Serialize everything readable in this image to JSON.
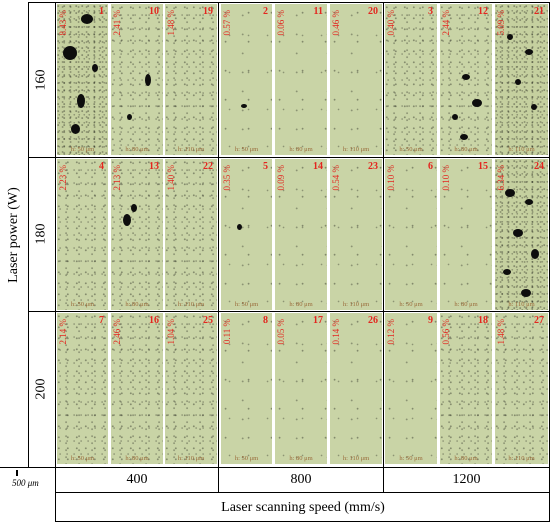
{
  "y_axis_label": "Laser power (W)",
  "x_axis_label": "Laser scanning speed (mm/s)",
  "powers": [
    "160",
    "180",
    "200"
  ],
  "speeds": [
    "400",
    "800",
    "1200"
  ],
  "scale_bar": "500 μm",
  "colors": {
    "annotation": "#e3261f",
    "micrograph": "#c9d4a6",
    "pore": "#0d0d0d"
  },
  "samples": [
    {
      "num": "1",
      "pct": "8.43 %",
      "hatch": "h: 50 μm"
    },
    {
      "num": "10",
      "pct": "2.41 %",
      "hatch": "h: 80 μm"
    },
    {
      "num": "19",
      "pct": "1.48 %",
      "hatch": "h: 110 μm"
    },
    {
      "num": "2",
      "pct": "0.57 %",
      "hatch": "h: 50 μm"
    },
    {
      "num": "11",
      "pct": "0.06 %",
      "hatch": "h: 80 μm"
    },
    {
      "num": "20",
      "pct": "0.46 %",
      "hatch": "h: 110 μm"
    },
    {
      "num": "3",
      "pct": "0.40 %",
      "hatch": "h: 50 μm"
    },
    {
      "num": "12",
      "pct": "2.44 %",
      "hatch": "h: 80 μm"
    },
    {
      "num": "21",
      "pct": "5.09 %",
      "hatch": "h: 110 μm"
    },
    {
      "num": "4",
      "pct": "2.23 %",
      "hatch": "h: 50 μm"
    },
    {
      "num": "13",
      "pct": "2.13 %",
      "hatch": "h: 80 μm"
    },
    {
      "num": "22",
      "pct": "1.40 %",
      "hatch": "h: 110 μm"
    },
    {
      "num": "5",
      "pct": "0.35 %",
      "hatch": "h: 50 μm"
    },
    {
      "num": "14",
      "pct": "0.09 %",
      "hatch": "h: 80 μm"
    },
    {
      "num": "23",
      "pct": "0.54 %",
      "hatch": "h: 110 μm"
    },
    {
      "num": "6",
      "pct": "0.10 %",
      "hatch": "h: 50 μm"
    },
    {
      "num": "15",
      "pct": "0.10 %",
      "hatch": "h: 80 μm"
    },
    {
      "num": "24",
      "pct": "6.34 %",
      "hatch": "h: 110 μm"
    },
    {
      "num": "7",
      "pct": "2.14 %",
      "hatch": "h: 50 μm"
    },
    {
      "num": "16",
      "pct": "2.46 %",
      "hatch": "h: 80 μm"
    },
    {
      "num": "25",
      "pct": "1.04 %",
      "hatch": "h: 110 μm"
    },
    {
      "num": "8",
      "pct": "0.11 %",
      "hatch": "h: 50 μm"
    },
    {
      "num": "17",
      "pct": "0.05 %",
      "hatch": "h: 80 μm"
    },
    {
      "num": "26",
      "pct": "0.14 %",
      "hatch": "h: 110 μm"
    },
    {
      "num": "9",
      "pct": "0.12 %",
      "hatch": "h: 50 μm"
    },
    {
      "num": "18",
      "pct": "0.56 %",
      "hatch": "h: 80 μm"
    },
    {
      "num": "27",
      "pct": "1.48 %",
      "hatch": "h: 110 μm"
    }
  ]
}
